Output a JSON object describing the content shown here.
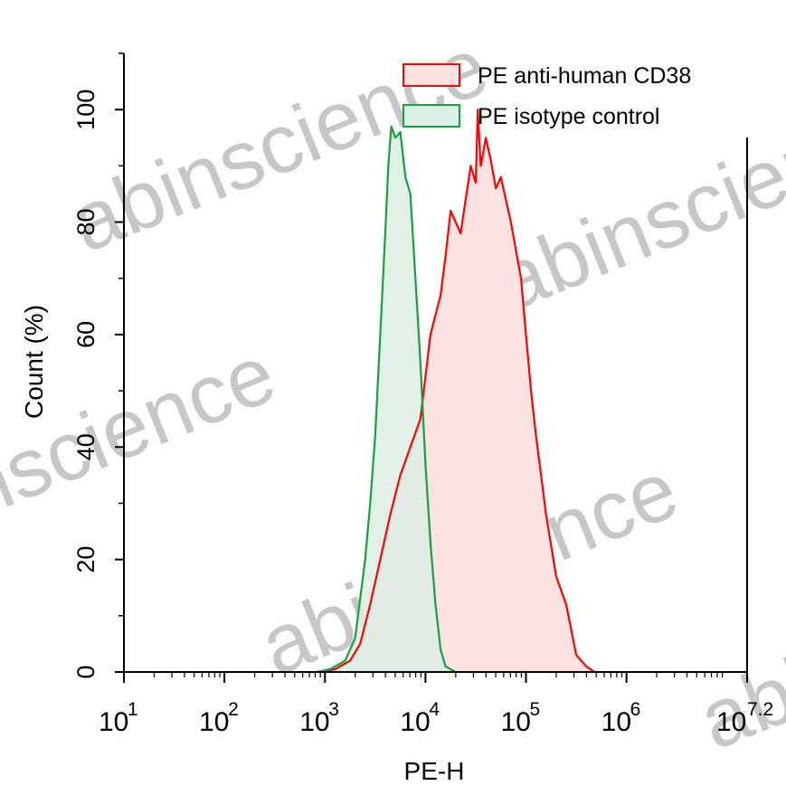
{
  "chart_data": {
    "type": "histogram",
    "title": "",
    "xlabel": "PE-H",
    "ylabel": "Count  (%)",
    "xscale": "log10",
    "xlim_log10": [
      1,
      7.2
    ],
    "ylim": [
      0,
      110
    ],
    "x_ticks": [
      {
        "exp": 1,
        "base": "10",
        "sup": "1"
      },
      {
        "exp": 2,
        "base": "10",
        "sup": "2"
      },
      {
        "exp": 3,
        "base": "10",
        "sup": "3"
      },
      {
        "exp": 4,
        "base": "10",
        "sup": "4"
      },
      {
        "exp": 5,
        "base": "10",
        "sup": "5"
      },
      {
        "exp": 6,
        "base": "10",
        "sup": "6"
      },
      {
        "exp": 7.2,
        "base": "10",
        "sup": "7.2"
      }
    ],
    "y_ticks": [
      {
        "value": 0,
        "label": "0"
      },
      {
        "value": 20,
        "label": "20"
      },
      {
        "value": 40,
        "label": "40"
      },
      {
        "value": 60,
        "label": "60"
      },
      {
        "value": 80,
        "label": "80"
      },
      {
        "value": 100,
        "label": "100"
      }
    ],
    "legend_position": "top-right",
    "series": [
      {
        "name": "PE anti-human CD38",
        "color": "#ff0000",
        "fill": "#fde2e2",
        "points": [
          [
            2.95,
            0
          ],
          [
            3.1,
            0.5
          ],
          [
            3.25,
            2
          ],
          [
            3.35,
            5
          ],
          [
            3.45,
            12
          ],
          [
            3.55,
            20
          ],
          [
            3.65,
            28
          ],
          [
            3.75,
            35
          ],
          [
            3.85,
            40
          ],
          [
            3.95,
            45
          ],
          [
            4.05,
            60
          ],
          [
            4.15,
            67
          ],
          [
            4.2,
            74
          ],
          [
            4.25,
            82
          ],
          [
            4.3,
            80
          ],
          [
            4.35,
            78
          ],
          [
            4.4,
            84
          ],
          [
            4.45,
            90
          ],
          [
            4.5,
            87
          ],
          [
            4.52,
            100
          ],
          [
            4.55,
            90
          ],
          [
            4.6,
            95
          ],
          [
            4.65,
            91
          ],
          [
            4.7,
            86
          ],
          [
            4.75,
            88
          ],
          [
            4.8,
            84
          ],
          [
            4.85,
            80
          ],
          [
            4.95,
            70
          ],
          [
            5.0,
            60
          ],
          [
            5.05,
            50
          ],
          [
            5.1,
            42
          ],
          [
            5.15,
            35
          ],
          [
            5.2,
            28
          ],
          [
            5.3,
            17
          ],
          [
            5.4,
            12
          ],
          [
            5.5,
            3
          ],
          [
            5.6,
            1
          ],
          [
            5.68,
            0
          ]
        ]
      },
      {
        "name": "PE isotype control",
        "color": "#18a040",
        "fill": "#dcefe4",
        "points": [
          [
            2.92,
            0
          ],
          [
            3.05,
            0.5
          ],
          [
            3.2,
            2
          ],
          [
            3.3,
            6
          ],
          [
            3.4,
            20
          ],
          [
            3.45,
            30
          ],
          [
            3.5,
            42
          ],
          [
            3.55,
            60
          ],
          [
            3.6,
            78
          ],
          [
            3.63,
            90
          ],
          [
            3.66,
            97
          ],
          [
            3.7,
            95
          ],
          [
            3.75,
            96
          ],
          [
            3.8,
            88
          ],
          [
            3.85,
            85
          ],
          [
            3.9,
            70
          ],
          [
            3.95,
            55
          ],
          [
            4.0,
            37
          ],
          [
            4.05,
            23
          ],
          [
            4.1,
            12
          ],
          [
            4.15,
            4
          ],
          [
            4.2,
            1
          ],
          [
            4.3,
            0
          ]
        ]
      }
    ]
  },
  "watermarks": [
    "abinscience",
    "abinscience",
    "abinscience",
    "abinscience",
    "abinscience"
  ]
}
